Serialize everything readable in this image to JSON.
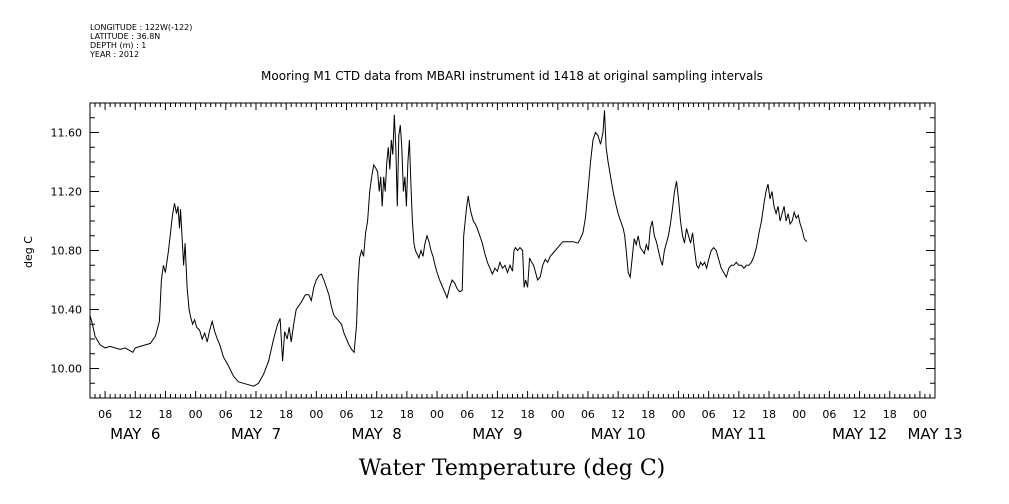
{
  "header": {
    "meta_lines": [
      "LONGITUDE : 122W(-122)",
      "LATITUDE : 36.8N",
      "DEPTH (m) : 1",
      "YEAR : 2012"
    ]
  },
  "chart_data": {
    "type": "line",
    "title": "Mooring M1 CTD data from MBARI instrument id 1418 at original sampling intervals",
    "xlabel": "Water Temperature (deg C)",
    "ylabel": "deg C",
    "xlim": [
      3,
      171
    ],
    "ylim": [
      9.8,
      11.8
    ],
    "yticks": [
      10.0,
      10.4,
      10.8,
      11.2,
      11.6
    ],
    "ytick_labels": [
      "10.00",
      "10.40",
      "10.80",
      "11.20",
      "11.60"
    ],
    "hour_ticks": [
      6,
      12,
      18,
      24,
      30,
      36,
      42,
      48,
      54,
      60,
      66,
      72,
      78,
      84,
      90,
      96,
      102,
      108,
      114,
      120,
      126,
      132,
      138,
      144,
      150,
      156,
      162,
      168
    ],
    "hour_tick_labels": [
      "06",
      "12",
      "18",
      "00",
      "06",
      "12",
      "18",
      "00",
      "06",
      "12",
      "18",
      "00",
      "06",
      "12",
      "18",
      "00",
      "06",
      "12",
      "18",
      "00",
      "06",
      "12",
      "18",
      "00",
      "06",
      "12",
      "18",
      "00"
    ],
    "date_labels": [
      {
        "x": 12,
        "label": "MAY  6"
      },
      {
        "x": 36,
        "label": "MAY  7"
      },
      {
        "x": 60,
        "label": "MAY  8"
      },
      {
        "x": 84,
        "label": "MAY  9"
      },
      {
        "x": 108,
        "label": "MAY 10"
      },
      {
        "x": 132,
        "label": "MAY 11"
      },
      {
        "x": 156,
        "label": "MAY 12"
      },
      {
        "x": 171,
        "label": "MAY 13"
      }
    ],
    "grid": false,
    "series": [
      {
        "points": [
          [
            3.0,
            10.36
          ],
          [
            3.5,
            10.3
          ],
          [
            4,
            10.22
          ],
          [
            5,
            10.16
          ],
          [
            6,
            10.14
          ],
          [
            7,
            10.15
          ],
          [
            8,
            10.14
          ],
          [
            9,
            10.13
          ],
          [
            10,
            10.14
          ],
          [
            11,
            10.12
          ],
          [
            11.5,
            10.11
          ],
          [
            12,
            10.14
          ],
          [
            13,
            10.15
          ],
          [
            14,
            10.16
          ],
          [
            15,
            10.17
          ],
          [
            16,
            10.22
          ],
          [
            16.8,
            10.32
          ],
          [
            17.2,
            10.6
          ],
          [
            17.6,
            10.7
          ],
          [
            18,
            10.65
          ],
          [
            18.6,
            10.8
          ],
          [
            19,
            10.92
          ],
          [
            19.4,
            11.04
          ],
          [
            19.8,
            11.12
          ],
          [
            20.2,
            11.05
          ],
          [
            20.5,
            11.1
          ],
          [
            20.8,
            10.95
          ],
          [
            21,
            11.08
          ],
          [
            21.3,
            10.9
          ],
          [
            21.6,
            10.7
          ],
          [
            21.9,
            10.85
          ],
          [
            22.3,
            10.55
          ],
          [
            22.7,
            10.4
          ],
          [
            23,
            10.35
          ],
          [
            23.4,
            10.3
          ],
          [
            23.8,
            10.33
          ],
          [
            24.2,
            10.28
          ],
          [
            24.8,
            10.26
          ],
          [
            25.3,
            10.2
          ],
          [
            25.8,
            10.24
          ],
          [
            26.3,
            10.18
          ],
          [
            26.8,
            10.26
          ],
          [
            27.3,
            10.32
          ],
          [
            27.8,
            10.25
          ],
          [
            28.3,
            10.2
          ],
          [
            28.8,
            10.16
          ],
          [
            29.5,
            10.08
          ],
          [
            30.5,
            10.02
          ],
          [
            31.5,
            9.95
          ],
          [
            32.5,
            9.91
          ],
          [
            33.5,
            9.9
          ],
          [
            34.5,
            9.89
          ],
          [
            35.5,
            9.88
          ],
          [
            36.5,
            9.9
          ],
          [
            37.5,
            9.96
          ],
          [
            38.5,
            10.05
          ],
          [
            39.5,
            10.2
          ],
          [
            40.3,
            10.3
          ],
          [
            40.8,
            10.34
          ],
          [
            41.3,
            10.05
          ],
          [
            41.7,
            10.25
          ],
          [
            42.2,
            10.2
          ],
          [
            42.6,
            10.28
          ],
          [
            43,
            10.18
          ],
          [
            43.5,
            10.3
          ],
          [
            44,
            10.4
          ],
          [
            45,
            10.45
          ],
          [
            45.8,
            10.5
          ],
          [
            46.5,
            10.5
          ],
          [
            47,
            10.46
          ],
          [
            47.5,
            10.55
          ],
          [
            48,
            10.6
          ],
          [
            48.5,
            10.63
          ],
          [
            49,
            10.64
          ],
          [
            49.5,
            10.6
          ],
          [
            50,
            10.55
          ],
          [
            50.5,
            10.5
          ],
          [
            51,
            10.42
          ],
          [
            51.5,
            10.36
          ],
          [
            52,
            10.34
          ],
          [
            52.5,
            10.32
          ],
          [
            53,
            10.3
          ],
          [
            53.5,
            10.24
          ],
          [
            54,
            10.2
          ],
          [
            54.5,
            10.16
          ],
          [
            55,
            10.13
          ],
          [
            55.5,
            10.11
          ],
          [
            56,
            10.3
          ],
          [
            56.3,
            10.6
          ],
          [
            56.6,
            10.75
          ],
          [
            57,
            10.8
          ],
          [
            57.4,
            10.76
          ],
          [
            57.8,
            10.92
          ],
          [
            58.2,
            11.0
          ],
          [
            58.6,
            11.2
          ],
          [
            59,
            11.3
          ],
          [
            59.4,
            11.38
          ],
          [
            59.8,
            11.36
          ],
          [
            60.2,
            11.33
          ],
          [
            60.5,
            11.2
          ],
          [
            60.8,
            11.3
          ],
          [
            61.1,
            11.1
          ],
          [
            61.4,
            11.3
          ],
          [
            61.7,
            11.2
          ],
          [
            62,
            11.4
          ],
          [
            62.3,
            11.5
          ],
          [
            62.6,
            11.35
          ],
          [
            62.9,
            11.55
          ],
          [
            63.2,
            11.45
          ],
          [
            63.5,
            11.72
          ],
          [
            63.8,
            11.5
          ],
          [
            64.1,
            11.1
          ],
          [
            64.4,
            11.58
          ],
          [
            64.7,
            11.65
          ],
          [
            65,
            11.5
          ],
          [
            65.3,
            11.2
          ],
          [
            65.6,
            11.3
          ],
          [
            65.9,
            11.1
          ],
          [
            66.2,
            11.4
          ],
          [
            66.5,
            11.55
          ],
          [
            66.8,
            11.25
          ],
          [
            67.1,
            11.0
          ],
          [
            67.4,
            10.85
          ],
          [
            67.7,
            10.8
          ],
          [
            68,
            10.78
          ],
          [
            68.4,
            10.75
          ],
          [
            68.8,
            10.8
          ],
          [
            69.2,
            10.76
          ],
          [
            69.6,
            10.85
          ],
          [
            70,
            10.9
          ],
          [
            70.4,
            10.86
          ],
          [
            70.8,
            10.8
          ],
          [
            71.2,
            10.76
          ],
          [
            71.6,
            10.7
          ],
          [
            72,
            10.65
          ],
          [
            72.5,
            10.6
          ],
          [
            73,
            10.56
          ],
          [
            73.5,
            10.52
          ],
          [
            74,
            10.48
          ],
          [
            74.5,
            10.55
          ],
          [
            75,
            10.6
          ],
          [
            75.5,
            10.58
          ],
          [
            76,
            10.54
          ],
          [
            76.5,
            10.52
          ],
          [
            77,
            10.53
          ],
          [
            77.3,
            10.9
          ],
          [
            77.6,
            11.0
          ],
          [
            77.9,
            11.1
          ],
          [
            78.2,
            11.17
          ],
          [
            78.5,
            11.1
          ],
          [
            78.8,
            11.05
          ],
          [
            79.2,
            11.0
          ],
          [
            79.6,
            10.98
          ],
          [
            80,
            10.95
          ],
          [
            80.5,
            10.9
          ],
          [
            81,
            10.85
          ],
          [
            81.5,
            10.78
          ],
          [
            82,
            10.72
          ],
          [
            82.5,
            10.68
          ],
          [
            83,
            10.64
          ],
          [
            83.5,
            10.68
          ],
          [
            84,
            10.66
          ],
          [
            84.5,
            10.72
          ],
          [
            85,
            10.68
          ],
          [
            85.5,
            10.7
          ],
          [
            86,
            10.65
          ],
          [
            86.5,
            10.7
          ],
          [
            87,
            10.66
          ],
          [
            87.3,
            10.8
          ],
          [
            87.6,
            10.82
          ],
          [
            88,
            10.8
          ],
          [
            88.5,
            10.82
          ],
          [
            89,
            10.8
          ],
          [
            89.3,
            10.55
          ],
          [
            89.6,
            10.6
          ],
          [
            90,
            10.55
          ],
          [
            90.4,
            10.75
          ],
          [
            90.8,
            10.72
          ],
          [
            91.2,
            10.7
          ],
          [
            91.6,
            10.65
          ],
          [
            92,
            10.6
          ],
          [
            92.5,
            10.62
          ],
          [
            93,
            10.7
          ],
          [
            93.5,
            10.74
          ],
          [
            94,
            10.72
          ],
          [
            94.5,
            10.76
          ],
          [
            95,
            10.78
          ],
          [
            95.5,
            10.8
          ],
          [
            96,
            10.82
          ],
          [
            96.5,
            10.84
          ],
          [
            97,
            10.86
          ],
          [
            98,
            10.86
          ],
          [
            99,
            10.86
          ],
          [
            100,
            10.85
          ],
          [
            100.5,
            10.88
          ],
          [
            101,
            10.92
          ],
          [
            101.5,
            11.02
          ],
          [
            102,
            11.2
          ],
          [
            102.5,
            11.4
          ],
          [
            103,
            11.55
          ],
          [
            103.5,
            11.6
          ],
          [
            104,
            11.58
          ],
          [
            104.5,
            11.52
          ],
          [
            105,
            11.6
          ],
          [
            105.3,
            11.75
          ],
          [
            105.6,
            11.5
          ],
          [
            106,
            11.4
          ],
          [
            106.5,
            11.3
          ],
          [
            107,
            11.2
          ],
          [
            107.5,
            11.12
          ],
          [
            108,
            11.05
          ],
          [
            108.5,
            11.0
          ],
          [
            109,
            10.95
          ],
          [
            109.3,
            10.9
          ],
          [
            109.6,
            10.8
          ],
          [
            110,
            10.65
          ],
          [
            110.4,
            10.62
          ],
          [
            110.8,
            10.75
          ],
          [
            111.2,
            10.88
          ],
          [
            111.6,
            10.84
          ],
          [
            112,
            10.9
          ],
          [
            112.4,
            10.82
          ],
          [
            112.8,
            10.8
          ],
          [
            113.2,
            10.78
          ],
          [
            113.6,
            10.84
          ],
          [
            114,
            10.8
          ],
          [
            114.4,
            10.95
          ],
          [
            114.8,
            11.0
          ],
          [
            115.2,
            10.9
          ],
          [
            115.6,
            10.86
          ],
          [
            116,
            10.8
          ],
          [
            116.4,
            10.74
          ],
          [
            116.8,
            10.7
          ],
          [
            117.2,
            10.8
          ],
          [
            117.6,
            10.85
          ],
          [
            118,
            10.9
          ],
          [
            118.4,
            10.98
          ],
          [
            118.8,
            11.08
          ],
          [
            119.2,
            11.2
          ],
          [
            119.6,
            11.27
          ],
          [
            120,
            11.15
          ],
          [
            120.4,
            11.0
          ],
          [
            120.8,
            10.9
          ],
          [
            121.2,
            10.85
          ],
          [
            121.6,
            10.95
          ],
          [
            122,
            10.9
          ],
          [
            122.4,
            10.85
          ],
          [
            122.8,
            10.92
          ],
          [
            123.2,
            10.8
          ],
          [
            123.6,
            10.7
          ],
          [
            124,
            10.68
          ],
          [
            124.4,
            10.72
          ],
          [
            124.8,
            10.7
          ],
          [
            125.2,
            10.72
          ],
          [
            125.6,
            10.68
          ],
          [
            126,
            10.74
          ],
          [
            126.5,
            10.8
          ],
          [
            127,
            10.82
          ],
          [
            127.5,
            10.8
          ],
          [
            128,
            10.74
          ],
          [
            128.5,
            10.68
          ],
          [
            129,
            10.65
          ],
          [
            129.5,
            10.62
          ],
          [
            130,
            10.68
          ],
          [
            130.5,
            10.7
          ],
          [
            131,
            10.7
          ],
          [
            131.5,
            10.72
          ],
          [
            132,
            10.7
          ],
          [
            132.5,
            10.7
          ],
          [
            133,
            10.68
          ],
          [
            133.5,
            10.7
          ],
          [
            134,
            10.7
          ],
          [
            134.5,
            10.72
          ],
          [
            135,
            10.76
          ],
          [
            135.5,
            10.82
          ],
          [
            136,
            10.92
          ],
          [
            136.5,
            11.0
          ],
          [
            137,
            11.12
          ],
          [
            137.4,
            11.2
          ],
          [
            137.8,
            11.25
          ],
          [
            138.2,
            11.15
          ],
          [
            138.6,
            11.2
          ],
          [
            139,
            11.1
          ],
          [
            139.4,
            11.05
          ],
          [
            139.8,
            11.1
          ],
          [
            140.2,
            11.0
          ],
          [
            140.6,
            11.05
          ],
          [
            141,
            11.1
          ],
          [
            141.4,
            11.0
          ],
          [
            141.8,
            11.05
          ],
          [
            142.2,
            10.98
          ],
          [
            142.6,
            11.0
          ],
          [
            143,
            11.06
          ],
          [
            143.4,
            11.02
          ],
          [
            143.8,
            11.04
          ],
          [
            144.2,
            10.98
          ],
          [
            144.6,
            10.94
          ],
          [
            145,
            10.88
          ],
          [
            145.5,
            10.86
          ]
        ]
      }
    ]
  }
}
